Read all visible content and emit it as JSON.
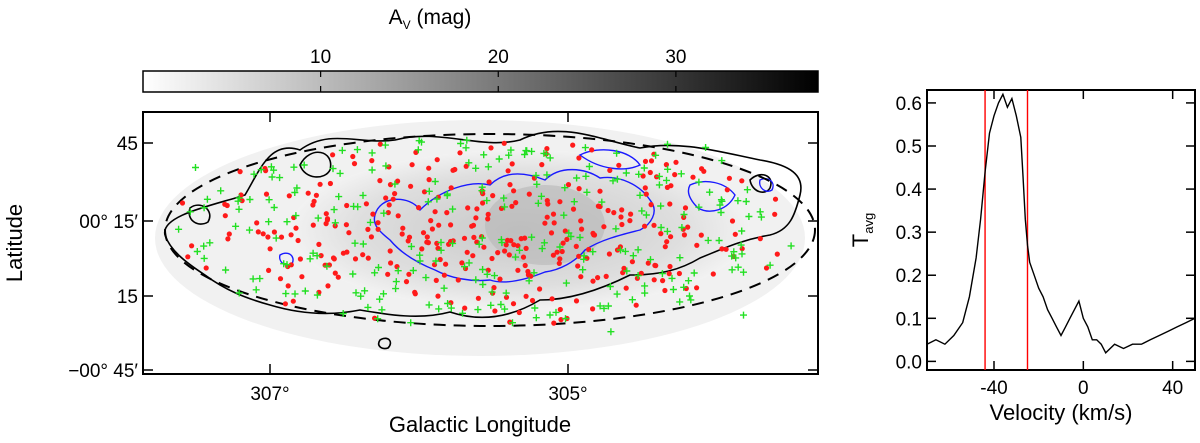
{
  "colorbar": {
    "title": "A",
    "title_sub": "V",
    "title_unit": " (mag)",
    "ticks": [
      "10",
      "20",
      "30"
    ],
    "tick_values": [
      10,
      20,
      30
    ],
    "range": [
      0,
      38
    ]
  },
  "map": {
    "xlabel": "Galactic Longitude",
    "ylabel": "Latitude",
    "xticks": [
      "307°",
      "305°"
    ],
    "yticks": [
      "45",
      "00° 15′",
      "15",
      "−00° 45′"
    ],
    "contour_colors": {
      "outer": "#000000",
      "inner": "#1a1aff",
      "ellipse": "#000000"
    },
    "marker_colors": {
      "dots": "#ff1a1a",
      "crosses": "#22e022"
    }
  },
  "chart_data": {
    "type": "line",
    "xlabel": "Velocity (km/s)",
    "ylabel": "T",
    "ylabel_sub": "avg",
    "xlim": [
      -70,
      50
    ],
    "ylim": [
      -0.02,
      0.63
    ],
    "xticks": [
      "-40",
      "0",
      "40"
    ],
    "xtick_values": [
      -40,
      0,
      40
    ],
    "yticks": [
      "0.0",
      "0.1",
      "0.2",
      "0.3",
      "0.4",
      "0.5",
      "0.6"
    ],
    "ytick_values": [
      0.0,
      0.1,
      0.2,
      0.3,
      0.4,
      0.5,
      0.6
    ],
    "vlines": [
      -44,
      -25
    ],
    "vline_color": "#ff0000",
    "series": [
      {
        "x": [
          -70,
          -66,
          -62,
          -58,
          -54,
          -51,
          -48,
          -46,
          -44,
          -42,
          -40,
          -38,
          -36,
          -34,
          -32,
          -30,
          -28,
          -27,
          -26,
          -25,
          -24,
          -22,
          -20,
          -18,
          -16,
          -14,
          -12,
          -10,
          -8,
          -6,
          -4,
          -2,
          0,
          2,
          4,
          6,
          8,
          10,
          14,
          18,
          22,
          26,
          30,
          34,
          38,
          42,
          46,
          50
        ],
        "y": [
          0.04,
          0.05,
          0.04,
          0.06,
          0.09,
          0.15,
          0.24,
          0.33,
          0.44,
          0.53,
          0.57,
          0.6,
          0.62,
          0.59,
          0.61,
          0.57,
          0.52,
          0.43,
          0.33,
          0.27,
          0.23,
          0.2,
          0.17,
          0.15,
          0.12,
          0.1,
          0.08,
          0.06,
          0.08,
          0.1,
          0.12,
          0.14,
          0.1,
          0.08,
          0.05,
          0.05,
          0.04,
          0.02,
          0.04,
          0.03,
          0.04,
          0.04,
          0.05,
          0.06,
          0.07,
          0.08,
          0.09,
          0.1
        ],
        "color": "#000000"
      }
    ]
  }
}
